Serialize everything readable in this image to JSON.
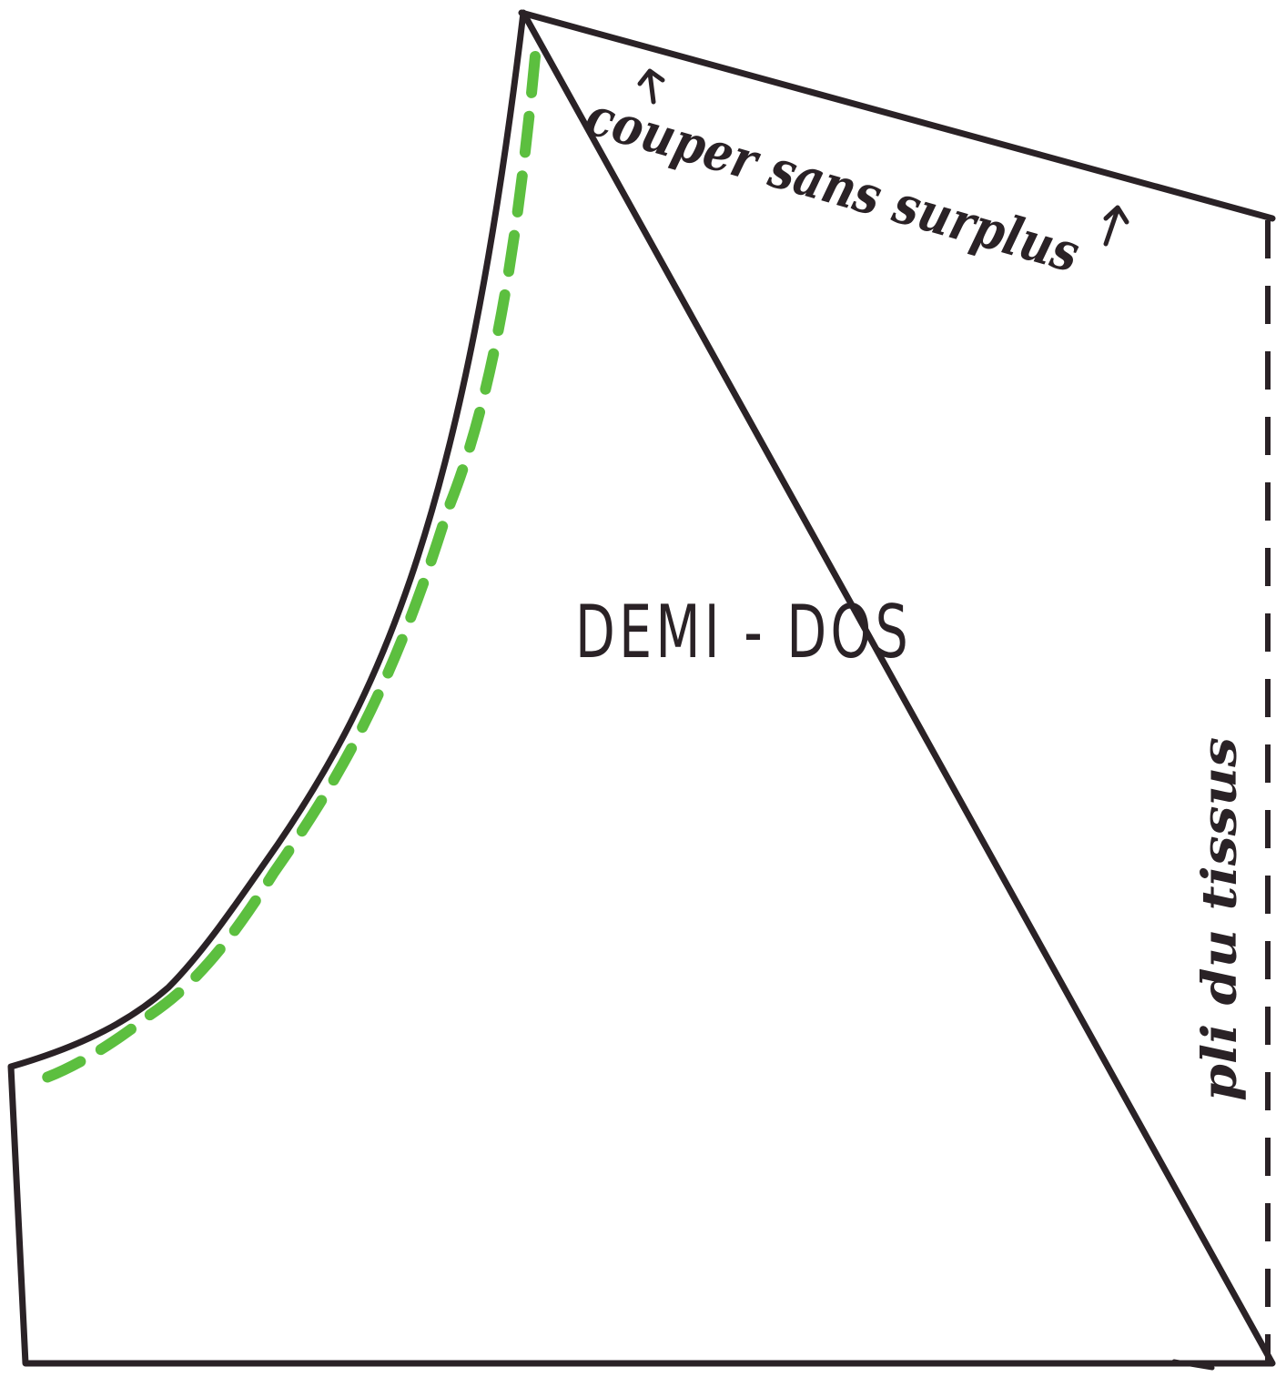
{
  "pattern": {
    "title": "DEMI - DOS",
    "cut_note": "couper sans surplus",
    "fold_note": "pli du tissus",
    "colors": {
      "outline": "#2a2226",
      "seam_line": "#5cbf3f",
      "fold_line": "#2a2226",
      "background": "#ffffff"
    }
  }
}
